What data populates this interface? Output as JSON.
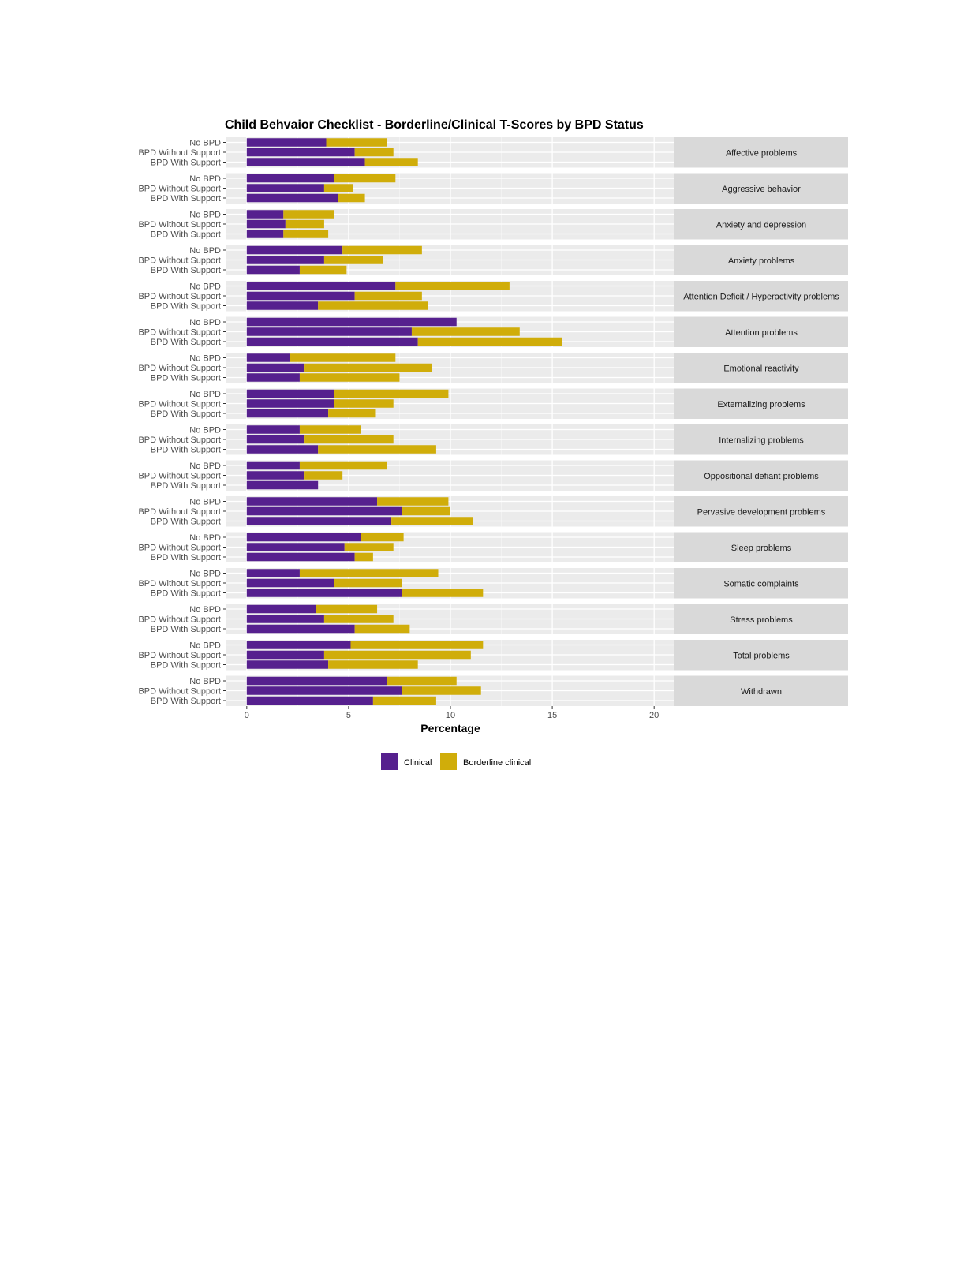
{
  "chart_data": {
    "type": "bar",
    "stacked": true,
    "orientation": "horizontal",
    "title": "Child Behvaior Checklist - Borderline/Clinical T-Scores by BPD Status",
    "xlabel": "Percentage",
    "ylabel": "",
    "xlim": [
      -1,
      21
    ],
    "xticks": [
      0,
      5,
      10,
      15,
      20
    ],
    "grid": true,
    "legend_position": "bottom",
    "groups": [
      "No BPD",
      "BPD Without Support",
      "BPD With Support"
    ],
    "series": [
      {
        "name": "Clinical",
        "color": "#56208e"
      },
      {
        "name": "Borderline clinical",
        "color": "#d0ad0a"
      }
    ],
    "panels": [
      {
        "label": "Affective problems",
        "clinical": [
          3.9,
          5.3,
          5.8
        ],
        "borderline": [
          3.0,
          1.9,
          2.6
        ]
      },
      {
        "label": "Aggressive behavior",
        "clinical": [
          4.3,
          3.8,
          4.5
        ],
        "borderline": [
          3.0,
          1.4,
          1.3
        ]
      },
      {
        "label": "Anxiety and depression",
        "clinical": [
          1.8,
          1.9,
          1.8
        ],
        "borderline": [
          2.5,
          1.9,
          2.2
        ]
      },
      {
        "label": "Anxiety problems",
        "clinical": [
          4.7,
          3.8,
          2.6
        ],
        "borderline": [
          3.9,
          2.9,
          2.3
        ]
      },
      {
        "label": "Attention Deficit / Hyperactivity problems",
        "clinical": [
          7.3,
          5.3,
          3.5
        ],
        "borderline": [
          5.6,
          3.3,
          5.4
        ]
      },
      {
        "label": "Attention problems",
        "clinical": [
          10.3,
          8.1,
          8.4
        ],
        "borderline": [
          0,
          5.3,
          7.1
        ]
      },
      {
        "label": "Emotional reactivity",
        "clinical": [
          2.1,
          2.8,
          2.6
        ],
        "borderline": [
          5.2,
          6.3,
          4.9
        ]
      },
      {
        "label": "Externalizing problems",
        "clinical": [
          4.3,
          4.3,
          4.0
        ],
        "borderline": [
          5.6,
          2.9,
          2.3
        ]
      },
      {
        "label": "Internalizing problems",
        "clinical": [
          2.6,
          2.8,
          3.5
        ],
        "borderline": [
          3.0,
          4.4,
          5.8
        ]
      },
      {
        "label": "Oppositional defiant problems",
        "clinical": [
          2.6,
          2.8,
          3.5
        ],
        "borderline": [
          4.3,
          1.9,
          0
        ]
      },
      {
        "label": "Pervasive development problems",
        "clinical": [
          6.4,
          7.6,
          7.1
        ],
        "borderline": [
          3.5,
          2.4,
          4.0
        ]
      },
      {
        "label": "Sleep problems",
        "clinical": [
          5.6,
          4.8,
          5.3
        ],
        "borderline": [
          2.1,
          2.4,
          0.9
        ]
      },
      {
        "label": "Somatic complaints",
        "clinical": [
          2.6,
          4.3,
          7.6
        ],
        "borderline": [
          6.8,
          3.3,
          4.0
        ]
      },
      {
        "label": "Stress problems",
        "clinical": [
          3.4,
          3.8,
          5.3
        ],
        "borderline": [
          3.0,
          3.4,
          2.7
        ]
      },
      {
        "label": "Total problems",
        "clinical": [
          5.1,
          3.8,
          4.0
        ],
        "borderline": [
          6.5,
          7.2,
          4.4
        ]
      },
      {
        "label": "Withdrawn",
        "clinical": [
          6.9,
          7.6,
          6.2
        ],
        "borderline": [
          3.4,
          3.9,
          3.1
        ]
      }
    ]
  }
}
